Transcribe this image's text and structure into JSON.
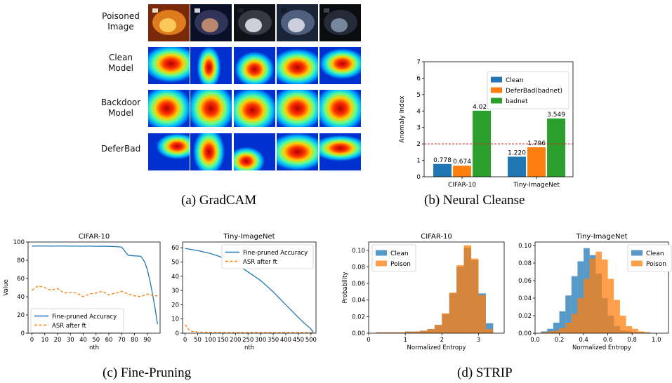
{
  "captions": {
    "a": "(a) GradCAM",
    "b": "(b) Neural Cleanse",
    "c": "(c) Fine-Pruning",
    "d": "(d) STRIP"
  },
  "gradcam": {
    "rows": [
      {
        "label_lines": [
          "Poisoned",
          "Image"
        ],
        "kind": "photo"
      },
      {
        "label_lines": [
          "Clean",
          "Model"
        ],
        "kind": "heatmap"
      },
      {
        "label_lines": [
          "Backdoor",
          "Model"
        ],
        "kind": "heatmap"
      },
      {
        "label_lines": [
          "DeferBad"
        ],
        "kind": "heatmap"
      }
    ],
    "columns": 5
  },
  "chart_data": [
    {
      "id": "neural-cleanse",
      "type": "bar",
      "title": "",
      "xlabel": "",
      "ylabel": "Anomaly Index",
      "ylim": [
        0,
        7
      ],
      "yticks": [
        0,
        1,
        2,
        3,
        4,
        5,
        6,
        7
      ],
      "categories": [
        "CIFAR-10",
        "Tiny-ImageNet"
      ],
      "series": [
        {
          "name": "Clean",
          "values": [
            0.778,
            1.22
          ],
          "labels": [
            "0.778",
            "1.220"
          ],
          "color": "#1f77b4"
        },
        {
          "name": "DeferBad(badnet)",
          "values": [
            0.674,
            1.796
          ],
          "labels": [
            "0.674",
            "1.796"
          ],
          "color": "#ff7f0e"
        },
        {
          "name": "badnet",
          "values": [
            4.02,
            3.549
          ],
          "labels": [
            "4.020",
            "3.549"
          ],
          "color": "#2ca02c"
        }
      ],
      "threshold": {
        "value": 2,
        "color": "#d62728"
      },
      "legend": "top-right",
      "grid": false
    },
    {
      "id": "fine-pruning-cifar",
      "type": "line",
      "title": "CIFAR-10",
      "xlabel": "nth",
      "ylabel": "Value",
      "xlim": [
        -3,
        100
      ],
      "ylim": [
        0,
        100
      ],
      "xticks": [
        0,
        10,
        20,
        30,
        40,
        50,
        60,
        70,
        80,
        90
      ],
      "yticks": [
        0,
        20,
        40,
        60,
        80,
        100
      ],
      "series": [
        {
          "name": "Fine-pruned Accuracy",
          "style": "solid",
          "color": "#1f77b4",
          "x": [
            0,
            5,
            10,
            15,
            20,
            25,
            30,
            35,
            40,
            45,
            50,
            55,
            60,
            65,
            70,
            75,
            80,
            85,
            88,
            90,
            92,
            94,
            96,
            98
          ],
          "y": [
            95.5,
            95.6,
            95.6,
            95.5,
            95.6,
            95.6,
            95.5,
            95.5,
            95.4,
            95.5,
            95.3,
            95.4,
            95.2,
            95.0,
            94.5,
            85.5,
            84.8,
            84.5,
            78,
            70,
            58,
            44,
            28,
            10
          ]
        },
        {
          "name": "ASR after ft",
          "style": "dashed",
          "color": "#ff7f0e",
          "x": [
            0,
            5,
            10,
            15,
            20,
            25,
            30,
            35,
            40,
            45,
            50,
            55,
            60,
            65,
            70,
            75,
            80,
            85,
            90,
            95,
            98
          ],
          "y": [
            47,
            52,
            50,
            47,
            49,
            44,
            45,
            44,
            40,
            43,
            44,
            46,
            42,
            44,
            46,
            43,
            41,
            40,
            43,
            41,
            41
          ]
        }
      ],
      "legend": "lower-left"
    },
    {
      "id": "fine-pruning-tiny",
      "type": "line",
      "title": "Tiny-ImageNet",
      "xlabel": "nth",
      "ylabel": "",
      "xlim": [
        -10,
        520
      ],
      "ylim": [
        0,
        64
      ],
      "xticks": [
        0,
        50,
        100,
        150,
        200,
        250,
        300,
        350,
        400,
        450,
        500
      ],
      "xticklabels": [
        "0",
        "50",
        "100",
        "150",
        "200",
        "250",
        "300",
        "350",
        "400",
        "450",
        "500"
      ],
      "yticks": [
        0,
        10,
        20,
        30,
        40,
        50,
        60
      ],
      "series": [
        {
          "name": "Fine-pruned Accuracy",
          "style": "solid",
          "color": "#1f77b4",
          "x": [
            0,
            50,
            100,
            150,
            200,
            250,
            300,
            350,
            400,
            450,
            480,
            500,
            510
          ],
          "y": [
            59.5,
            58,
            56,
            53,
            49,
            43,
            37,
            29,
            20,
            11,
            6,
            3,
            0.5
          ]
        },
        {
          "name": "ASR after ft",
          "style": "dashed",
          "color": "#ff7f0e",
          "x": [
            0,
            10,
            20,
            40,
            60,
            100,
            150,
            200,
            250,
            300,
            350,
            400,
            450,
            500,
            510
          ],
          "y": [
            6,
            3.5,
            1.5,
            1,
            0.8,
            0.6,
            0.5,
            0.5,
            0.5,
            0.5,
            0.5,
            0.5,
            0.5,
            0.5,
            0.5
          ]
        }
      ],
      "legend": "top-right"
    },
    {
      "id": "strip-cifar",
      "type": "bar",
      "subtype": "histogram",
      "title": "CIFAR-10",
      "xlabel": "Normalized Entropy",
      "ylabel": "Probability",
      "xlim": [
        0,
        3.7
      ],
      "ylim": [
        0,
        0.11
      ],
      "xticks": [
        0,
        1,
        2,
        3
      ],
      "yticks": [
        0.0,
        0.02,
        0.04,
        0.06,
        0.08,
        0.1
      ],
      "yticklabels": [
        "0.00",
        "0.02",
        "0.04",
        "0.06",
        "0.08",
        "0.10"
      ],
      "bin_edges": [
        0.2,
        0.4,
        0.6,
        0.8,
        1.0,
        1.2,
        1.4,
        1.6,
        1.8,
        2.0,
        2.2,
        2.4,
        2.6,
        2.8,
        3.0,
        3.2,
        3.4
      ],
      "series": [
        {
          "name": "Clean",
          "color": "#1f77b4",
          "values": [
            0.001,
            0.001,
            0.001,
            0.001,
            0.002,
            0.002,
            0.003,
            0.005,
            0.01,
            0.023,
            0.048,
            0.08,
            0.103,
            0.088,
            0.048,
            0.012
          ]
        },
        {
          "name": "Poison",
          "color": "#ff7f0e",
          "values": [
            0.001,
            0.001,
            0.001,
            0.001,
            0.002,
            0.002,
            0.003,
            0.005,
            0.01,
            0.024,
            0.049,
            0.082,
            0.106,
            0.09,
            0.046,
            0.005
          ]
        }
      ],
      "legend": "top-left"
    },
    {
      "id": "strip-tiny",
      "type": "bar",
      "subtype": "histogram",
      "title": "Tiny-ImageNet",
      "xlabel": "Normalized Entropy",
      "ylabel": "",
      "xlim": [
        0,
        1.1
      ],
      "ylim": [
        0,
        0.104
      ],
      "xticks": [
        0.0,
        0.2,
        0.4,
        0.6,
        0.8,
        1.0
      ],
      "xticklabels": [
        "0.0",
        "0.2",
        "0.4",
        "0.6",
        "0.8",
        "1.0"
      ],
      "yticks": [
        0.0,
        0.02,
        0.04,
        0.06,
        0.08,
        0.1
      ],
      "yticklabels": [
        "0.00",
        "0.02",
        "0.04",
        "0.06",
        "0.08",
        "0.10"
      ],
      "bin_edges": [
        0.05,
        0.1,
        0.15,
        0.2,
        0.25,
        0.3,
        0.35,
        0.4,
        0.45,
        0.5,
        0.55,
        0.6,
        0.65,
        0.7,
        0.75,
        0.8,
        0.85,
        0.9,
        0.95
      ],
      "series": [
        {
          "name": "Clean",
          "color": "#1f77b4",
          "values": [
            0.002,
            0.005,
            0.012,
            0.025,
            0.043,
            0.065,
            0.082,
            0.097,
            0.089,
            0.068,
            0.04,
            0.02,
            0.008,
            0.003,
            0.002,
            0.001,
            0.001,
            0.001
          ]
        },
        {
          "name": "Poison",
          "color": "#ff7f0e",
          "values": [
            0.001,
            0.002,
            0.003,
            0.006,
            0.012,
            0.022,
            0.04,
            0.062,
            0.085,
            0.093,
            0.084,
            0.062,
            0.038,
            0.02,
            0.008,
            0.005,
            0.002,
            0.001
          ]
        }
      ],
      "legend": "top-right"
    }
  ]
}
